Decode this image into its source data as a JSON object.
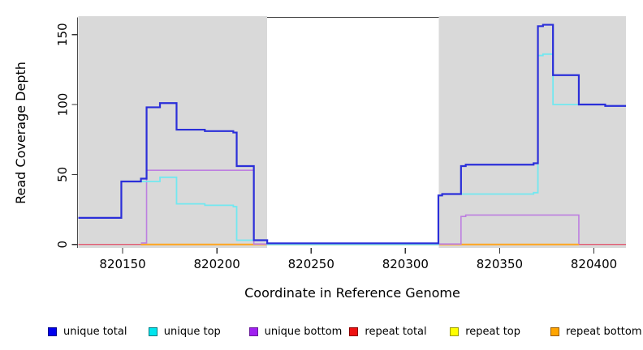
{
  "chart_data": {
    "type": "line",
    "step": true,
    "title": "",
    "xlabel": "Coordinate in Reference Genome",
    "ylabel": "Read Coverage Depth",
    "xlim": [
      820126.5,
      820417
    ],
    "ylim": [
      0,
      162
    ],
    "grid": false,
    "legend_position": "bottom",
    "xticks": [
      {
        "label": "820150",
        "value": 820150
      },
      {
        "label": "820200",
        "value": 820200
      },
      {
        "label": "820250",
        "value": 820250
      },
      {
        "label": "820300",
        "value": 820300
      },
      {
        "label": "820350",
        "value": 820350
      },
      {
        "label": "820400",
        "value": 820400
      }
    ],
    "yticks": [
      {
        "label": "0",
        "value": 0
      },
      {
        "label": "50",
        "value": 50
      },
      {
        "label": "100",
        "value": 100
      },
      {
        "label": "150",
        "value": 150
      }
    ],
    "shaded_regions": [
      {
        "name": "left-gray-region",
        "x0": 820126.5,
        "x1": 820226.7,
        "color": "#d9d9d9"
      },
      {
        "name": "right-gray-region",
        "x0": 820317.8,
        "x1": 820417,
        "color": "#d9d9d9"
      }
    ],
    "gap_top_border": {
      "x0": 820226.7,
      "x1": 820317.8,
      "color": "#4a4a4a"
    },
    "series": [
      {
        "name": "repeat total",
        "color": "#e05a72",
        "width": 1.4,
        "points": [
          [
            820126.5,
            0
          ],
          [
            820417,
            0
          ]
        ]
      },
      {
        "name": "repeat top",
        "color": "#f5e642",
        "width": 1.4,
        "points": [
          [
            820159.7,
            0
          ],
          [
            820392,
            0
          ]
        ]
      },
      {
        "name": "repeat bottom",
        "color": "#ffa51f",
        "width": 2,
        "points": [
          [
            820159.7,
            0
          ],
          [
            820392,
            0
          ]
        ]
      },
      {
        "name": "unique bottom",
        "color": "#bd7fe0",
        "width": 1.6,
        "points": [
          [
            820159.7,
            1
          ],
          [
            820162.7,
            53
          ],
          [
            820219.6,
            0.3
          ],
          [
            820226.7,
            0.2
          ],
          [
            820317.8,
            0.3
          ],
          [
            820329.5,
            20
          ],
          [
            820332,
            21
          ],
          [
            820392,
            0.3
          ]
        ]
      },
      {
        "name": "unique top",
        "color": "#72e8f0",
        "width": 1.8,
        "points": [
          [
            820126.5,
            19
          ],
          [
            820149.3,
            45
          ],
          [
            820169.8,
            48
          ],
          [
            820178.6,
            29
          ],
          [
            820193.6,
            28
          ],
          [
            820208.7,
            27
          ],
          [
            820210.5,
            3
          ],
          [
            820226.7,
            0
          ],
          [
            820317.5,
            35
          ],
          [
            820319.5,
            36
          ],
          [
            820368,
            37
          ],
          [
            820370.3,
            135
          ],
          [
            820373,
            136
          ],
          [
            820378.3,
            100
          ],
          [
            820406,
            99
          ],
          [
            820417,
            99
          ]
        ]
      },
      {
        "name": "unique total",
        "color": "#2b2fd9",
        "width": 2.2,
        "points": [
          [
            820126.5,
            19
          ],
          [
            820149.3,
            45
          ],
          [
            820159.7,
            47
          ],
          [
            820162.7,
            98
          ],
          [
            820169.8,
            101
          ],
          [
            820178.6,
            82
          ],
          [
            820193.6,
            81
          ],
          [
            820208.7,
            80
          ],
          [
            820210.5,
            56
          ],
          [
            820219.6,
            3
          ],
          [
            820226.7,
            0.8
          ],
          [
            820317.5,
            35
          ],
          [
            820319.5,
            36
          ],
          [
            820329.5,
            56
          ],
          [
            820332,
            57
          ],
          [
            820368,
            58
          ],
          [
            820370.3,
            156
          ],
          [
            820373,
            157
          ],
          [
            820378.3,
            121
          ],
          [
            820392,
            100
          ],
          [
            820406,
            99
          ],
          [
            820417,
            99
          ]
        ]
      }
    ],
    "legend": [
      {
        "label": "unique total",
        "fill": "#0000ee",
        "border": "#00008b"
      },
      {
        "label": "unique top",
        "fill": "#00e5ee",
        "border": "#007a80"
      },
      {
        "label": "unique bottom",
        "fill": "#a020f0",
        "border": "#6a1b9a"
      },
      {
        "label": "repeat total",
        "fill": "#ee1111",
        "border": "#8b0000"
      },
      {
        "label": "repeat top",
        "fill": "#ffff00",
        "border": "#999900"
      },
      {
        "label": "repeat bottom",
        "fill": "#ffa500",
        "border": "#995c00"
      }
    ]
  }
}
